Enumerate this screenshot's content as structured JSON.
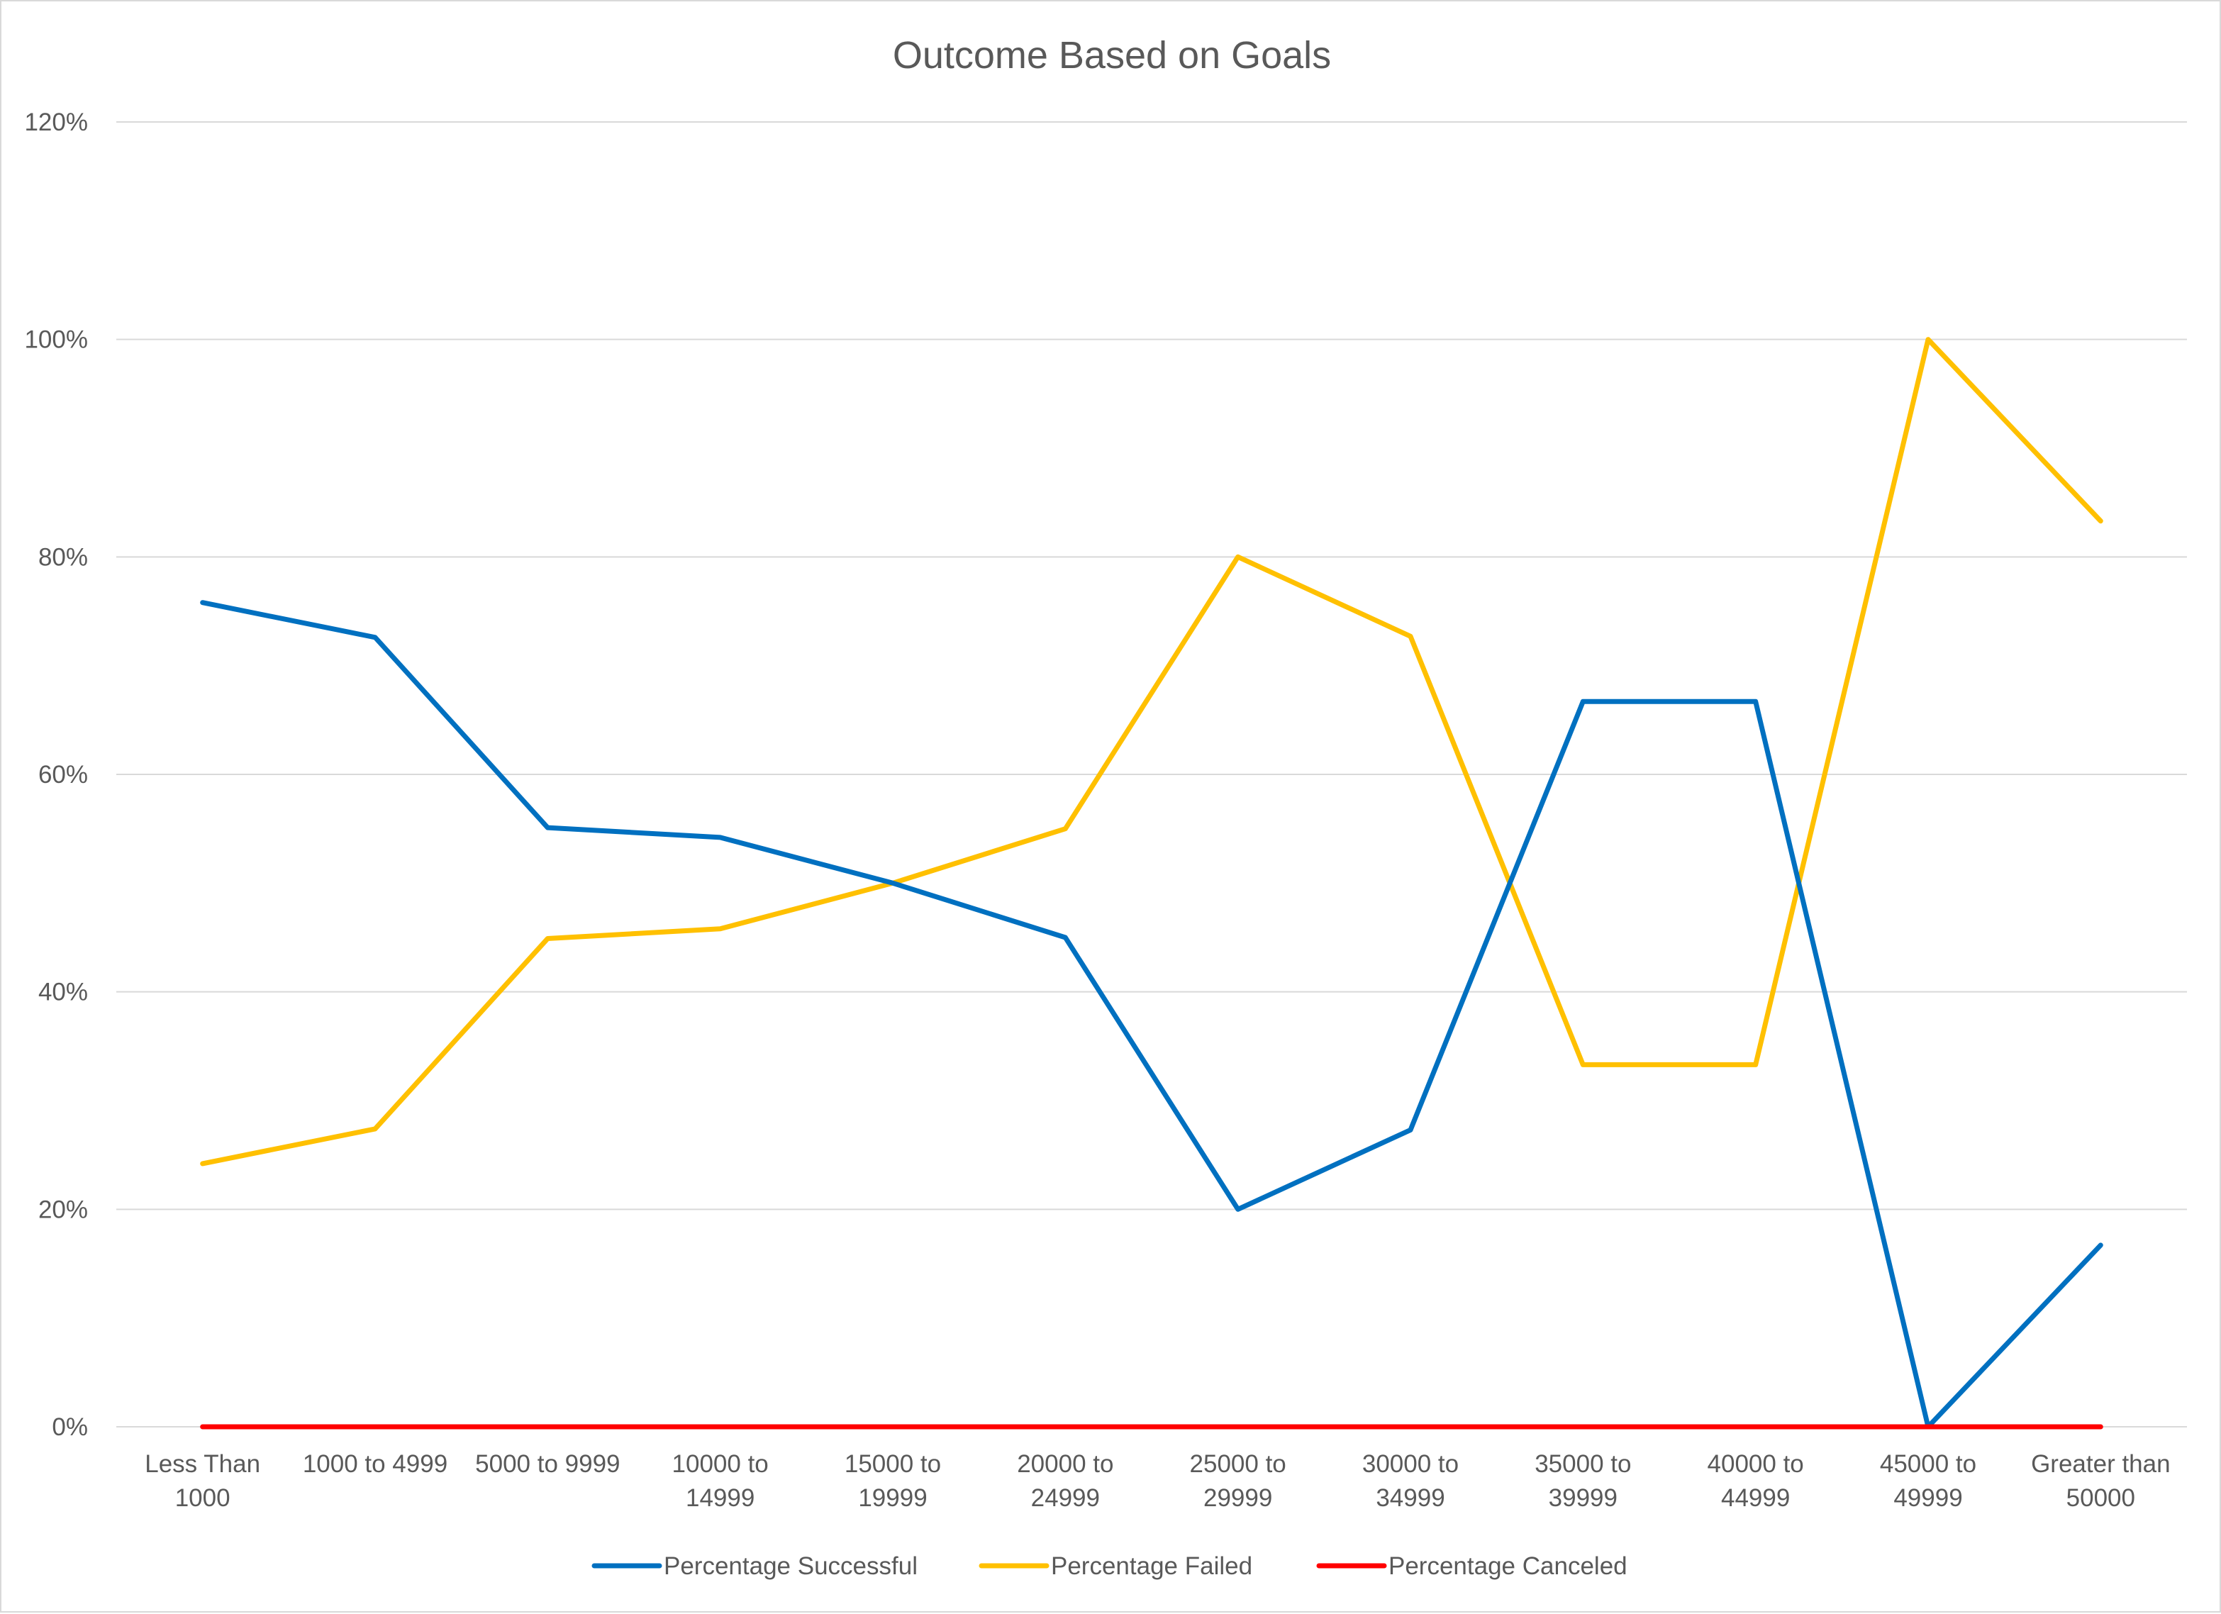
{
  "chart_data": {
    "type": "line",
    "title": "Outcome Based on Goals",
    "xlabel": "",
    "ylabel": "",
    "categories": [
      [
        "Less Than",
        "1000"
      ],
      [
        "1000 to 4999"
      ],
      [
        "5000 to 9999"
      ],
      [
        "10000 to",
        "14999"
      ],
      [
        "15000 to",
        "19999"
      ],
      [
        "20000 to",
        "24999"
      ],
      [
        "25000 to",
        "29999"
      ],
      [
        "30000 to",
        "34999"
      ],
      [
        "35000 to",
        "39999"
      ],
      [
        "40000 to",
        "44999"
      ],
      [
        "45000 to",
        "49999"
      ],
      [
        "Greater than",
        "50000"
      ]
    ],
    "ylim": [
      0,
      1.2
    ],
    "yticks": [
      0,
      0.2,
      0.4,
      0.6,
      0.8,
      1.0,
      1.2
    ],
    "ytick_labels": [
      "0%",
      "20%",
      "40%",
      "60%",
      "80%",
      "100%",
      "120%"
    ],
    "grid": true,
    "legend_position": "bottom",
    "series": [
      {
        "name": "Percentage Successful",
        "color": "#0070c0",
        "values": [
          0.758,
          0.726,
          0.551,
          0.542,
          0.5,
          0.45,
          0.2,
          0.273,
          0.667,
          0.667,
          0.0,
          0.167
        ]
      },
      {
        "name": "Percentage Failed",
        "color": "#ffc000",
        "values": [
          0.242,
          0.274,
          0.449,
          0.458,
          0.5,
          0.55,
          0.8,
          0.727,
          0.333,
          0.333,
          1.0,
          0.833
        ]
      },
      {
        "name": "Percentage Canceled",
        "color": "#ff0000",
        "values": [
          0,
          0,
          0,
          0,
          0,
          0,
          0,
          0,
          0,
          0,
          0,
          0
        ]
      }
    ]
  }
}
